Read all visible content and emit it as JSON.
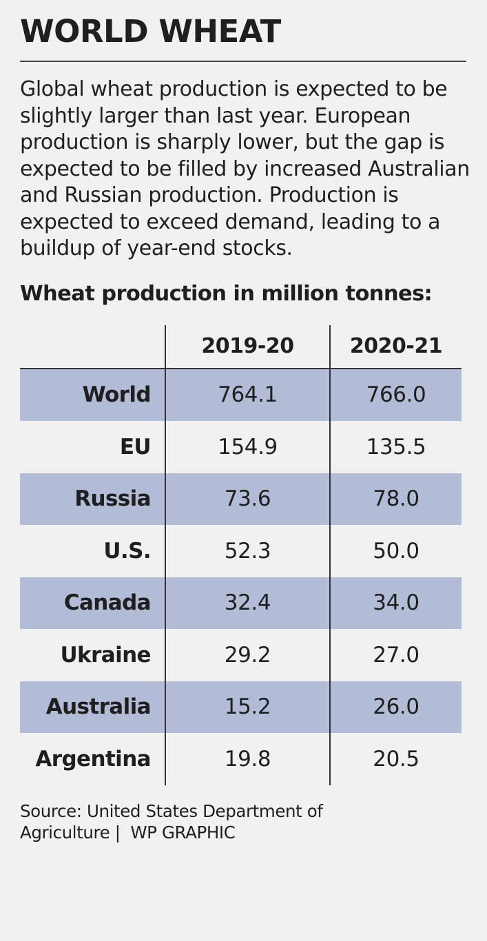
{
  "title": "WORLD WHEAT",
  "intro": "Global wheat production is expected to be slightly larger than last year. European production is sharply lower, but the gap is expected to be filled by increased Australian and Russian production. Production is expected to exceed demand, leading to a buildup of year-end stocks.",
  "table_title": "Wheat production in million tonnes:",
  "footer": {
    "source_line1": "Source: United States Department of",
    "source_line2": "Agriculture |  WP GRAPHIC"
  },
  "colors": {
    "shaded_row": "#b3bcd6",
    "background": "#f1f1f1"
  },
  "chart_data": {
    "type": "table",
    "title": "Wheat production in million tonnes:",
    "columns": [
      "",
      "2019-20",
      "2020-21"
    ],
    "rows": [
      {
        "region": "World",
        "v2019": "764.1",
        "v2020": "766.0"
      },
      {
        "region": "EU",
        "v2019": "154.9",
        "v2020": "135.5"
      },
      {
        "region": "Russia",
        "v2019": "73.6",
        "v2020": "78.0"
      },
      {
        "region": "U.S.",
        "v2019": "52.3",
        "v2020": "50.0"
      },
      {
        "region": "Canada",
        "v2019": "32.4",
        "v2020": "34.0"
      },
      {
        "region": "Ukraine",
        "v2019": "29.2",
        "v2020": "27.0"
      },
      {
        "region": "Australia",
        "v2019": "15.2",
        "v2020": "26.0"
      },
      {
        "region": "Argentina",
        "v2019": "19.8",
        "v2020": "20.5"
      }
    ]
  }
}
